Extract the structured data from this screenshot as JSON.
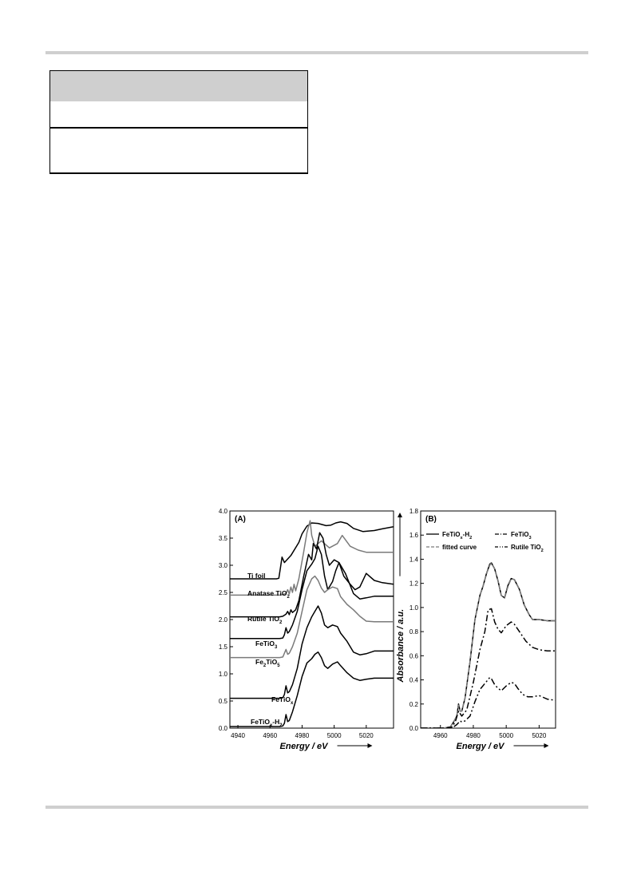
{
  "page": {
    "header_rule": "divider",
    "footer_rule": "divider"
  },
  "table": {
    "header_color": "#cfcfcf"
  },
  "chart_data": [
    {
      "panel_label": "(A)",
      "type": "line",
      "xlabel": "Energy / eV",
      "ylabel": "Absorbance / a.u.",
      "xlim": [
        4935,
        5037
      ],
      "ylim": [
        0.0,
        4.0
      ],
      "xticks": [
        "4940",
        "4960",
        "4980",
        "5000",
        "5020"
      ],
      "yticks": [
        "0.0",
        "0.5",
        "1.0",
        "1.5",
        "2.0",
        "2.5",
        "3.0",
        "3.5",
        "4.0"
      ],
      "series": [
        {
          "name": "Ti foil",
          "label_sub": "",
          "color": "#000000",
          "x": [
            4935,
            4964,
            4965.5,
            4966.5,
            4967.5,
            4969,
            4973,
            4978,
            4980,
            4983,
            4986,
            4990,
            4995,
            4998,
            5001,
            5004,
            5008,
            5012,
            5018,
            5025,
            5030,
            5037
          ],
          "y": [
            2.75,
            2.75,
            2.76,
            2.95,
            3.15,
            3.05,
            3.18,
            3.42,
            3.58,
            3.72,
            3.78,
            3.77,
            3.73,
            3.74,
            3.78,
            3.8,
            3.77,
            3.68,
            3.62,
            3.64,
            3.67,
            3.71
          ]
        },
        {
          "name": "Anatase TiO",
          "label_sub": "2",
          "color": "#7a7a7a",
          "x": [
            4935,
            4966,
            4968,
            4970,
            4971,
            4972,
            4973,
            4974,
            4975,
            4976,
            4978,
            4981,
            4983,
            4985,
            4986,
            4988,
            4992,
            4997,
            5002,
            5005,
            5010,
            5015,
            5020,
            5030,
            5037
          ],
          "y": [
            2.45,
            2.45,
            2.46,
            2.48,
            2.55,
            2.47,
            2.6,
            2.5,
            2.65,
            2.53,
            2.75,
            3.25,
            3.6,
            3.82,
            3.55,
            3.35,
            3.45,
            3.32,
            3.4,
            3.55,
            3.35,
            3.28,
            3.24,
            3.24,
            3.24
          ]
        },
        {
          "name": "Rutile TiO",
          "label_sub": "2",
          "color": "#000000",
          "x": [
            4935,
            4966,
            4968,
            4970,
            4971,
            4972,
            4973,
            4974,
            4976,
            4978,
            4981,
            4984,
            4986,
            4987,
            4989,
            4991,
            4993,
            4995,
            4997,
            5000,
            5003,
            5006,
            5010,
            5013,
            5016,
            5020,
            5025,
            5030,
            5037
          ],
          "y": [
            2.05,
            2.05,
            2.06,
            2.1,
            2.15,
            2.09,
            2.18,
            2.13,
            2.18,
            2.35,
            2.8,
            3.2,
            3.1,
            3.4,
            3.3,
            3.6,
            3.5,
            3.2,
            3.0,
            3.1,
            3.05,
            2.8,
            2.65,
            2.55,
            2.6,
            2.85,
            2.72,
            2.68,
            2.65
          ]
        },
        {
          "name": "FeTiO",
          "label_sub": "3",
          "color": "#000000",
          "x": [
            4935,
            4966,
            4968,
            4969,
            4970,
            4971,
            4972,
            4974,
            4977,
            4980,
            4983,
            4986,
            4988,
            4990,
            4992,
            4994,
            4996,
            4999,
            5001,
            5003,
            5007,
            5012,
            5016,
            5020,
            5025,
            5030,
            5037
          ],
          "y": [
            1.65,
            1.65,
            1.66,
            1.72,
            1.85,
            1.75,
            1.78,
            1.9,
            2.15,
            2.55,
            2.9,
            3.02,
            3.12,
            3.35,
            3.2,
            2.8,
            2.55,
            2.7,
            2.9,
            3.05,
            2.85,
            2.48,
            2.38,
            2.4,
            2.43,
            2.43,
            2.43
          ]
        },
        {
          "name": "Fe",
          "label_sub": "2",
          "label_tail": "TiO",
          "label_sub2": "5",
          "color": "#7a7a7a",
          "x": [
            4935,
            4966,
            4968,
            4969,
            4970,
            4971,
            4972,
            4974,
            4977,
            4980,
            4983,
            4986,
            4988,
            4990,
            4992,
            4994,
            4996,
            4999,
            5002,
            5004,
            5008,
            5012,
            5016,
            5020,
            5025,
            5030,
            5037
          ],
          "y": [
            1.3,
            1.3,
            1.31,
            1.38,
            1.45,
            1.36,
            1.38,
            1.5,
            1.75,
            2.15,
            2.55,
            2.75,
            2.8,
            2.72,
            2.58,
            2.5,
            2.55,
            2.6,
            2.57,
            2.42,
            2.28,
            2.18,
            2.06,
            1.97,
            1.96,
            1.96,
            1.96
          ]
        },
        {
          "name": "FeTiO",
          "label_sub": "x",
          "color": "#000000",
          "x": [
            4935,
            4966,
            4968,
            4969,
            4970,
            4971,
            4972,
            4974,
            4977,
            4980,
            4983,
            4986,
            4988,
            4990,
            4992,
            4994,
            4996,
            4999,
            5002,
            5004,
            5008,
            5012,
            5016,
            5020,
            5025,
            5030,
            5037
          ],
          "y": [
            0.55,
            0.55,
            0.56,
            0.62,
            0.78,
            0.65,
            0.67,
            0.8,
            1.1,
            1.55,
            1.85,
            2.05,
            2.15,
            2.25,
            2.12,
            1.9,
            1.85,
            1.9,
            1.87,
            1.75,
            1.6,
            1.4,
            1.35,
            1.37,
            1.42,
            1.42,
            1.42
          ]
        },
        {
          "name": "FeTiO",
          "label_sub": "x",
          "label_tail": "-H",
          "label_sub2": "2",
          "color": "#000000",
          "x": [
            4935,
            4966,
            4968,
            4969,
            4970,
            4971,
            4972,
            4974,
            4977,
            4980,
            4983,
            4986,
            4988,
            4990,
            4992,
            4994,
            4996,
            4999,
            5002,
            5004,
            5008,
            5012,
            5016,
            5020,
            5025,
            5030,
            5037
          ],
          "y": [
            0.03,
            0.03,
            0.04,
            0.09,
            0.25,
            0.12,
            0.14,
            0.3,
            0.6,
            0.95,
            1.2,
            1.28,
            1.36,
            1.4,
            1.3,
            1.15,
            1.1,
            1.18,
            1.22,
            1.15,
            1.02,
            0.92,
            0.88,
            0.9,
            0.92,
            0.92,
            0.92
          ]
        }
      ]
    },
    {
      "panel_label": "(B)",
      "type": "line",
      "xlabel": "Energy / eV",
      "ylabel": "Absorbance / a.u.",
      "xlim": [
        4948,
        5030
      ],
      "ylim": [
        0.0,
        1.8
      ],
      "xticks": [
        "4960",
        "4980",
        "5000",
        "5020"
      ],
      "yticks": [
        "0.0",
        "0.2",
        "0.4",
        "0.6",
        "0.8",
        "1.0",
        "1.2",
        "1.4",
        "1.6",
        "1.8"
      ],
      "series": [
        {
          "name": "FeTiO",
          "label_sub": "x",
          "label_tail": "-H",
          "label_sub2": "2",
          "dash": "",
          "color": "#000000",
          "x": [
            4948,
            4962,
            4966,
            4968,
            4970,
            4971,
            4972,
            4973,
            4975,
            4978,
            4981,
            4984,
            4986,
            4988,
            4990,
            4991,
            4993,
            4995,
            4997,
            4999,
            5001,
            5003,
            5005,
            5008,
            5011,
            5014,
            5016,
            5020,
            5025,
            5030
          ],
          "y": [
            0.0,
            0.0,
            0.01,
            0.05,
            0.1,
            0.2,
            0.14,
            0.14,
            0.25,
            0.55,
            0.9,
            1.1,
            1.18,
            1.28,
            1.36,
            1.37,
            1.32,
            1.22,
            1.1,
            1.08,
            1.18,
            1.24,
            1.23,
            1.15,
            1.02,
            0.94,
            0.9,
            0.9,
            0.89,
            0.89
          ]
        },
        {
          "name": "fitted curve",
          "label_sub": "",
          "dash": "6,3",
          "color": "#7a7a7a",
          "x": [
            4948,
            4962,
            4966,
            4968,
            4970,
            4971,
            4972,
            4973,
            4975,
            4978,
            4981,
            4984,
            4986,
            4988,
            4990,
            4991,
            4993,
            4995,
            4997,
            4999,
            5001,
            5003,
            5005,
            5008,
            5011,
            5014,
            5016,
            5020,
            5025,
            5030
          ],
          "y": [
            0.0,
            0.0,
            0.01,
            0.05,
            0.1,
            0.19,
            0.14,
            0.14,
            0.25,
            0.55,
            0.9,
            1.1,
            1.18,
            1.28,
            1.35,
            1.37,
            1.32,
            1.22,
            1.1,
            1.08,
            1.17,
            1.24,
            1.23,
            1.15,
            1.02,
            0.94,
            0.9,
            0.9,
            0.89,
            0.89
          ]
        },
        {
          "name": "FeTiO",
          "label_sub": "3",
          "dash": "8,3,2,3",
          "color": "#000000",
          "x": [
            4948,
            4964,
            4967,
            4969,
            4971,
            4973,
            4976,
            4980,
            4984,
            4987,
            4989,
            4991,
            4993,
            4995,
            4997,
            5000,
            5003,
            5005,
            5008,
            5012,
            5016,
            5020,
            5025,
            5030
          ],
          "y": [
            0.0,
            0.0,
            0.01,
            0.05,
            0.14,
            0.1,
            0.15,
            0.38,
            0.65,
            0.8,
            0.98,
            0.99,
            0.88,
            0.82,
            0.79,
            0.85,
            0.88,
            0.86,
            0.8,
            0.72,
            0.67,
            0.65,
            0.64,
            0.64
          ]
        },
        {
          "name": "Rutile TiO",
          "label_sub": "2",
          "dash": "8,3,2,3,2,3",
          "color": "#000000",
          "x": [
            4948,
            4964,
            4968,
            4970,
            4972,
            4973,
            4975,
            4978,
            4981,
            4984,
            4987,
            4990,
            4991,
            4993,
            4995,
            4997,
            5000,
            5003,
            5005,
            5007,
            5010,
            5013,
            5016,
            5020,
            5025,
            5030
          ],
          "y": [
            0.0,
            0.0,
            0.01,
            0.03,
            0.06,
            0.05,
            0.06,
            0.1,
            0.22,
            0.32,
            0.37,
            0.42,
            0.41,
            0.36,
            0.33,
            0.31,
            0.35,
            0.38,
            0.37,
            0.33,
            0.28,
            0.26,
            0.26,
            0.27,
            0.24,
            0.23
          ]
        }
      ]
    }
  ]
}
